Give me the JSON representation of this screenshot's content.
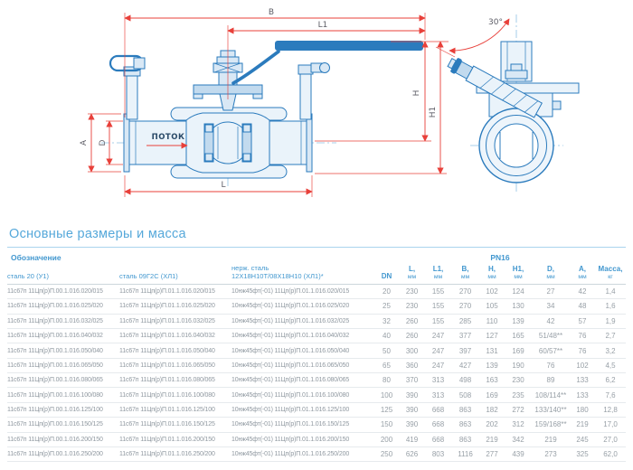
{
  "title": "Основные размеры и масса",
  "drawing": {
    "labels": {
      "b": "B",
      "l1": "L1",
      "l": "L",
      "h": "H",
      "h1": "H1",
      "a": "A",
      "d": "D",
      "flow": "ПОТОК",
      "angle": "30°"
    }
  },
  "table": {
    "designation_header": "Обозначение",
    "pressure_header": "PN16",
    "material_columns": [
      "сталь 20 (У1)",
      "сталь 09Г2С (ХЛ1)"
    ],
    "stainless_column_line1": "нерж. сталь",
    "stainless_column_line2": "12Х18Н10Т/08Х18Н10 (ХЛ1)*",
    "dim_columns": [
      {
        "label": "DN",
        "unit": ""
      },
      {
        "label": "L,",
        "unit": "мм"
      },
      {
        "label": "L1,",
        "unit": "мм"
      },
      {
        "label": "B,",
        "unit": "мм"
      },
      {
        "label": "H,",
        "unit": "мм"
      },
      {
        "label": "H1,",
        "unit": "мм"
      },
      {
        "label": "D,",
        "unit": "мм"
      },
      {
        "label": "A,",
        "unit": "мм"
      },
      {
        "label": "Масса,",
        "unit": "кг"
      }
    ],
    "rows": [
      [
        "11с67п 11Цп(р)П.00.1.016.020/015",
        "11с67п 11Цп(р)П.01.1.016.020/015",
        "10нж45фт(-01) 11Цп(р)П.01.1.016.020/015",
        "20",
        "230",
        "155",
        "270",
        "102",
        "124",
        "27",
        "42",
        "1,4"
      ],
      [
        "11с67п 11Цп(р)П.00.1.016.025/020",
        "11с67п 11Цп(р)П.01.1.016.025/020",
        "10нж45фт(-01) 11Цп(р)П.01.1.016.025/020",
        "25",
        "230",
        "155",
        "270",
        "105",
        "130",
        "34",
        "48",
        "1,6"
      ],
      [
        "11с67п 11Цп(р)П.00.1.016.032/025",
        "11с67п 11Цп(р)П.01.1.016.032/025",
        "10нж45фт(-01) 11Цп(р)П.01.1.016.032/025",
        "32",
        "260",
        "155",
        "285",
        "110",
        "139",
        "42",
        "57",
        "1,9"
      ],
      [
        "11с67п 11Цп(р)П.00.1.016.040/032",
        "11с67п 11Цп(р)П.01.1.016.040/032",
        "10нж45фт(-01) 11Цп(р)П.01.1.016.040/032",
        "40",
        "260",
        "247",
        "377",
        "127",
        "165",
        "51/48**",
        "76",
        "2,7"
      ],
      [
        "11с67п 11Цп(р)П.00.1.016.050/040",
        "11с67п 11Цп(р)П.01.1.016.050/040",
        "10нж45фт(-01) 11Цп(р)П.01.1.016.050/040",
        "50",
        "300",
        "247",
        "397",
        "131",
        "169",
        "60/57**",
        "76",
        "3,2"
      ],
      [
        "11с67п 11Цп(р)П.00.1.016.065/050",
        "11с67п 11Цп(р)П.01.1.016.065/050",
        "10нж45фт(-01) 11Цп(р)П.01.1.016.065/050",
        "65",
        "360",
        "247",
        "427",
        "139",
        "190",
        "76",
        "102",
        "4,5"
      ],
      [
        "11с67п 11Цп(р)П.00.1.016.080/065",
        "11с67п 11Цп(р)П.01.1.016.080/065",
        "10нж45фт(-01) 11Цп(р)П.01.1.016.080/065",
        "80",
        "370",
        "313",
        "498",
        "163",
        "230",
        "89",
        "133",
        "6,2"
      ],
      [
        "11с67п 11Цп(р)П.00.1.016.100/080",
        "11с67п 11Цп(р)П.01.1.016.100/080",
        "10нж45фт(-01) 11Цп(р)П.01.1.016.100/080",
        "100",
        "390",
        "313",
        "508",
        "169",
        "235",
        "108/114**",
        "133",
        "7,6"
      ],
      [
        "11с67п 11Цп(р)П.00.1.016.125/100",
        "11с67п 11Цп(р)П.01.1.016.125/100",
        "10нж45фт(-01) 11Цп(р)П.01.1.016.125/100",
        "125",
        "390",
        "668",
        "863",
        "182",
        "272",
        "133/140**",
        "180",
        "12,8"
      ],
      [
        "11с67п 11Цп(р)П.00.1.016.150/125",
        "11с67п 11Цп(р)П.01.1.016.150/125",
        "10нж45фт(-01) 11Цп(р)П.01.1.016.150/125",
        "150",
        "390",
        "668",
        "863",
        "202",
        "312",
        "159/168**",
        "219",
        "17,0"
      ],
      [
        "11с67п 11Цп(р)П.00.1.016.200/150",
        "11с67п 11Цп(р)П.01.1.016.200/150",
        "10нж45фт(-01) 11Цп(р)П.01.1.016.200/150",
        "200",
        "419",
        "668",
        "863",
        "219",
        "342",
        "219",
        "245",
        "27,0"
      ],
      [
        "11с67п 11Цп(р)П.00.1.016.250/200",
        "11с67п 11Цп(р)П.01.1.016.250/200",
        "10нж45фт(-01) 11Цп(р)П.01.1.016.250/200",
        "250",
        "626",
        "803",
        "1116",
        "277",
        "439",
        "273",
        "325",
        "62,0"
      ]
    ]
  },
  "colors": {
    "accent_blue": "#55a8da",
    "header_blue": "#4197cf",
    "drawing_blue": "#2b7bbd",
    "dimension_red": "#e8403a",
    "data_gray": "#98a0a7"
  }
}
